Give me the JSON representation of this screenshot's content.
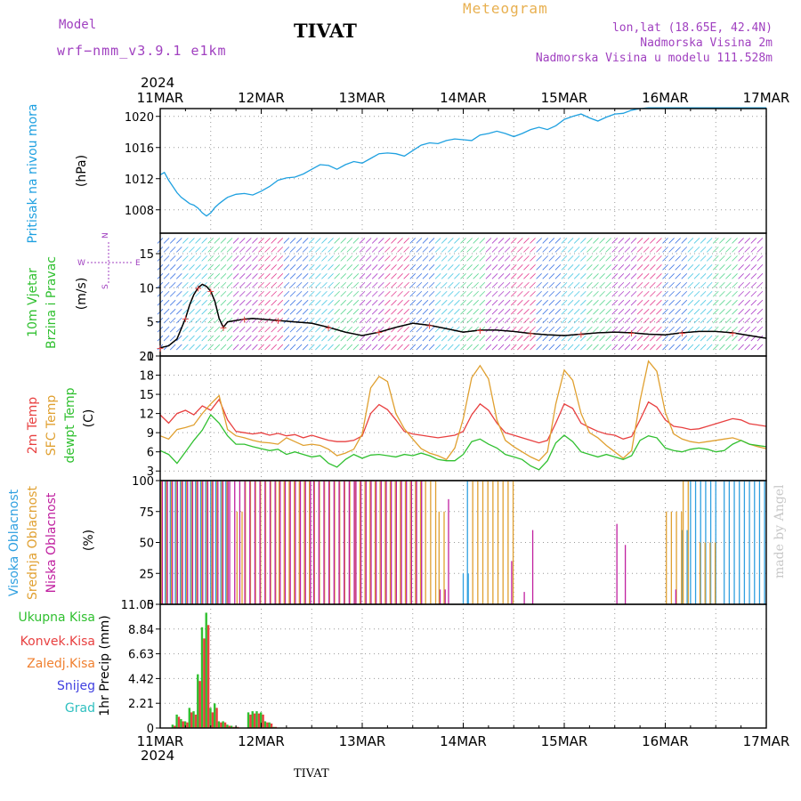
{
  "header": {
    "model_label": "Model",
    "model_name": "wrf−nmm_v3.9.1 e1km",
    "station": "TIVAT",
    "meteogram": "Meteogram",
    "lonlat": "lon,lat (18.65E, 42.4N)",
    "elevation": "Nadmorska Visina 2m",
    "model_elevation": "Nadmorska Visina u modelu 111.528m",
    "year_top": "2024",
    "year_bottom": "2024",
    "footer_station": "TIVAT",
    "made_by": "made by Angel"
  },
  "colors": {
    "pressure": "#1ea0e0",
    "temp2m": "#e84040",
    "sfctemp": "#e0a030",
    "dewpt": "#30c030",
    "high_cloud": "#30a0e0",
    "mid_cloud": "#e0a030",
    "low_cloud": "#c020a0",
    "total_rain": "#30c030",
    "conv_rain": "#e84040",
    "frozen": "#f08030",
    "snow": "#4040e0",
    "hail": "#30c0c0",
    "wind_speed_line": "#000000",
    "wind_dir_marks": "#e84040"
  },
  "chart_data": [
    {
      "type": "line",
      "id": "pressure",
      "ylabel": [
        "Pritisak na nivou mora",
        "(hPa)"
      ],
      "x_ticks": [
        "11MAR",
        "12MAR",
        "13MAR",
        "14MAR",
        "15MAR",
        "16MAR",
        "17MAR"
      ],
      "x_unit": "hours since 11MAR 00UTC",
      "xlim": [
        0,
        144
      ],
      "ylim": [
        1005,
        1021
      ],
      "yticks": [
        1008,
        1012,
        1016,
        1020
      ],
      "grid": true,
      "series": [
        {
          "name": "",
          "x": [
            0,
            1,
            2,
            3,
            4,
            5,
            6,
            7,
            8,
            9,
            10,
            11,
            12,
            13,
            14,
            15,
            16,
            18,
            20,
            22,
            24,
            26,
            28,
            30,
            32,
            34,
            36,
            38,
            40,
            42,
            44,
            46,
            48,
            50,
            52,
            54,
            56,
            58,
            60,
            62,
            64,
            66,
            68,
            70,
            72,
            74,
            76,
            78,
            80,
            82,
            84,
            86,
            88,
            90,
            92,
            94,
            96,
            98,
            100,
            102,
            104,
            106,
            108,
            110,
            112,
            114,
            116,
            118,
            120,
            122,
            124,
            126,
            128,
            130,
            132,
            134,
            136,
            138,
            140,
            142,
            144
          ],
          "y": [
            1012.5,
            1012.8,
            1011.8,
            1011.0,
            1010.2,
            1009.6,
            1009.2,
            1008.8,
            1008.6,
            1008.2,
            1007.6,
            1007.2,
            1007.6,
            1008.3,
            1008.8,
            1009.2,
            1009.6,
            1010.0,
            1010.1,
            1009.9,
            1010.4,
            1011.0,
            1011.8,
            1012.1,
            1012.2,
            1012.6,
            1013.2,
            1013.8,
            1013.7,
            1013.2,
            1013.8,
            1014.2,
            1014.0,
            1014.6,
            1015.2,
            1015.3,
            1015.2,
            1014.9,
            1015.6,
            1016.3,
            1016.6,
            1016.5,
            1016.9,
            1017.1,
            1017.0,
            1016.9,
            1017.6,
            1017.8,
            1018.1,
            1017.8,
            1017.4,
            1017.8,
            1018.3,
            1018.6,
            1018.3,
            1018.8,
            1019.6,
            1020.0,
            1020.3,
            1019.8,
            1019.4,
            1019.9,
            1020.3,
            1020.4,
            1020.8,
            1021.0,
            1021.1,
            1021.1,
            1021.1,
            1021.1,
            1021.1,
            1021.1,
            1021.1,
            1021.1,
            1021.1,
            1021.1,
            1021.1,
            1021.1,
            1021.1,
            1021.1,
            1021.1
          ]
        }
      ]
    },
    {
      "type": "line",
      "id": "wind",
      "ylabel": [
        "10m Vjetar",
        "Brzina i Pravac",
        "(m/s)"
      ],
      "compass": {
        "n": "N",
        "s": "S",
        "w": "W",
        "e": "E"
      },
      "xlim": [
        0,
        144
      ],
      "ylim": [
        0,
        18
      ],
      "yticks": [
        0,
        5,
        10,
        15
      ],
      "grid": true,
      "series": [
        {
          "name": "",
          "x": [
            0,
            2,
            4,
            6,
            7,
            8,
            9,
            10,
            11,
            12,
            13,
            14,
            15,
            16,
            18,
            20,
            22,
            24,
            28,
            32,
            36,
            40,
            44,
            48,
            52,
            56,
            60,
            64,
            68,
            72,
            76,
            80,
            84,
            88,
            92,
            96,
            100,
            104,
            108,
            112,
            116,
            120,
            124,
            128,
            132,
            136,
            140,
            144
          ],
          "y": [
            1.2,
            1.5,
            2.5,
            5.5,
            7.5,
            9.0,
            10.0,
            10.5,
            10.2,
            9.5,
            8.0,
            5.5,
            4.2,
            5.0,
            5.2,
            5.4,
            5.5,
            5.4,
            5.2,
            5.0,
            4.8,
            4.2,
            3.5,
            3.0,
            3.5,
            4.2,
            4.8,
            4.5,
            4.0,
            3.5,
            3.8,
            3.8,
            3.6,
            3.3,
            3.1,
            3.0,
            3.2,
            3.4,
            3.5,
            3.4,
            3.2,
            3.1,
            3.4,
            3.6,
            3.6,
            3.4,
            3.0,
            2.6
          ]
        }
      ]
    },
    {
      "type": "line",
      "id": "temperature",
      "ylabel": [
        "2m Temp",
        "SFC Temp",
        "dewpt Temp",
        "(C)"
      ],
      "xlim": [
        0,
        144
      ],
      "ylim": [
        1.5,
        21
      ],
      "yticks": [
        3,
        6,
        9,
        12,
        15,
        18,
        21
      ],
      "grid": true,
      "series": [
        {
          "name": "2m Temp",
          "x": [
            0,
            2,
            4,
            6,
            8,
            10,
            12,
            14,
            16,
            18,
            20,
            22,
            24,
            26,
            28,
            30,
            32,
            34,
            36,
            38,
            40,
            42,
            44,
            46,
            48,
            50,
            52,
            54,
            56,
            58,
            60,
            62,
            64,
            66,
            68,
            70,
            72,
            74,
            76,
            78,
            80,
            82,
            84,
            86,
            88,
            90,
            92,
            94,
            96,
            98,
            100,
            102,
            104,
            106,
            108,
            110,
            112,
            114,
            116,
            118,
            120,
            122,
            124,
            126,
            128,
            130,
            132,
            134,
            136,
            138,
            140,
            142,
            144
          ],
          "y": [
            11.8,
            10.5,
            12.0,
            12.5,
            11.8,
            13.2,
            12.5,
            14.2,
            11.0,
            9.2,
            9.0,
            8.8,
            9.0,
            8.6,
            8.9,
            8.5,
            8.7,
            8.2,
            8.6,
            8.2,
            7.8,
            7.6,
            7.6,
            7.8,
            8.5,
            12.0,
            13.4,
            12.6,
            11.0,
            9.2,
            8.8,
            8.6,
            8.4,
            8.2,
            8.4,
            8.6,
            9.2,
            11.8,
            13.5,
            12.5,
            10.5,
            9.0,
            8.6,
            8.2,
            7.8,
            7.4,
            7.8,
            10.5,
            13.5,
            12.8,
            10.5,
            9.8,
            9.2,
            8.8,
            8.6,
            8.0,
            8.4,
            11.0,
            13.8,
            13.0,
            11.0,
            10.0,
            9.8,
            9.5,
            9.6,
            10.0,
            10.4,
            10.8,
            11.2,
            11.0,
            10.4,
            10.2,
            10.0
          ]
        },
        {
          "name": "SFC Temp",
          "x": [
            0,
            2,
            4,
            6,
            8,
            10,
            12,
            14,
            16,
            18,
            20,
            22,
            24,
            26,
            28,
            30,
            32,
            34,
            36,
            38,
            40,
            42,
            44,
            46,
            48,
            50,
            52,
            54,
            56,
            58,
            60,
            62,
            64,
            66,
            68,
            70,
            72,
            74,
            76,
            78,
            80,
            82,
            84,
            86,
            88,
            90,
            92,
            94,
            96,
            98,
            100,
            102,
            104,
            106,
            108,
            110,
            112,
            114,
            116,
            118,
            120,
            122,
            124,
            126,
            128,
            130,
            132,
            134,
            136,
            138,
            140,
            142,
            144
          ],
          "y": [
            8.5,
            8.0,
            9.5,
            9.8,
            10.2,
            12.0,
            13.5,
            14.8,
            9.5,
            8.5,
            8.2,
            7.8,
            7.5,
            7.4,
            7.2,
            8.2,
            7.6,
            7.0,
            7.2,
            7.0,
            6.4,
            5.4,
            5.8,
            6.4,
            8.8,
            16.0,
            17.8,
            17.0,
            12.0,
            9.6,
            8.0,
            6.5,
            5.8,
            5.4,
            4.8,
            6.6,
            11.2,
            17.6,
            19.5,
            17.4,
            11.0,
            7.8,
            6.8,
            6.0,
            5.2,
            4.6,
            6.0,
            13.5,
            18.8,
            17.2,
            12.0,
            9.0,
            8.2,
            7.0,
            6.0,
            5.0,
            6.2,
            14.0,
            20.2,
            18.6,
            12.2,
            8.8,
            8.0,
            7.6,
            7.4,
            7.6,
            7.8,
            8.0,
            8.2,
            7.8,
            7.2,
            6.8,
            6.5
          ]
        },
        {
          "name": "dewpt Temp",
          "x": [
            0,
            2,
            4,
            6,
            8,
            10,
            12,
            14,
            16,
            18,
            20,
            22,
            24,
            26,
            28,
            30,
            32,
            34,
            36,
            38,
            40,
            42,
            44,
            46,
            48,
            50,
            52,
            54,
            56,
            58,
            60,
            62,
            64,
            66,
            68,
            70,
            72,
            74,
            76,
            78,
            80,
            82,
            84,
            86,
            88,
            90,
            92,
            94,
            96,
            98,
            100,
            102,
            104,
            106,
            108,
            110,
            112,
            114,
            116,
            118,
            120,
            122,
            124,
            126,
            128,
            130,
            132,
            134,
            136,
            138,
            140,
            142,
            144
          ],
          "y": [
            6.2,
            5.6,
            4.2,
            6.0,
            7.8,
            9.4,
            11.8,
            10.5,
            8.5,
            7.2,
            7.2,
            6.8,
            6.5,
            6.2,
            6.4,
            5.6,
            6.0,
            5.6,
            5.2,
            5.4,
            4.2,
            3.6,
            4.8,
            5.6,
            5.0,
            5.5,
            5.6,
            5.4,
            5.2,
            5.6,
            5.4,
            5.8,
            5.4,
            4.8,
            4.6,
            4.6,
            5.6,
            7.6,
            8.0,
            7.2,
            6.6,
            5.6,
            5.2,
            4.8,
            3.8,
            3.2,
            4.6,
            7.4,
            8.6,
            7.6,
            6.0,
            5.6,
            5.2,
            5.6,
            5.2,
            4.8,
            5.4,
            7.8,
            8.5,
            8.2,
            6.6,
            6.2,
            6.0,
            6.4,
            6.6,
            6.4,
            6.0,
            6.2,
            7.2,
            7.8,
            7.2,
            7.0,
            6.8
          ]
        }
      ]
    },
    {
      "type": "bar",
      "id": "cloud",
      "ylabel": [
        "Visoka Oblacnost",
        "Srednja Oblacnost",
        "Niska Oblacnost",
        "(%)"
      ],
      "xlim": [
        0,
        144
      ],
      "ylim": [
        0,
        100
      ],
      "yticks": [
        0,
        25,
        50,
        75,
        100
      ],
      "grid": true,
      "series": [
        {
          "name": "Visoka Oblacnost",
          "ranges": [
            [
              0,
              16,
              100
            ],
            [
              72,
              74,
              25
            ],
            [
              73,
              74,
              100
            ],
            [
              124,
              126,
              60
            ],
            [
              126,
              132,
              100
            ],
            [
              134,
              144,
              100
            ]
          ]
        },
        {
          "name": "Srednja Oblacnost",
          "ranges": [
            [
              0,
              16,
              100
            ],
            [
              18,
              20,
              75
            ],
            [
              20,
              28,
              100
            ],
            [
              28,
              40,
              100
            ],
            [
              40,
              66,
              100
            ],
            [
              66,
              68,
              75
            ],
            [
              74,
              84,
              100
            ],
            [
              120,
              124,
              75
            ],
            [
              124,
              126,
              100
            ],
            [
              128,
              132,
              50
            ]
          ]
        },
        {
          "name": "Niska Oblacnost",
          "ranges": [
            [
              0,
              16,
              100
            ],
            [
              16,
              36,
              100
            ],
            [
              36,
              46,
              100
            ],
            [
              46,
              62,
              100
            ],
            [
              66,
              68,
              12
            ],
            [
              68,
              69,
              85
            ],
            [
              83,
              84,
              35
            ],
            [
              86,
              87,
              10
            ],
            [
              88,
              89,
              60
            ],
            [
              108,
              109,
              65
            ],
            [
              110,
              111,
              48
            ],
            [
              122,
              123,
              12
            ]
          ]
        }
      ]
    },
    {
      "type": "bar",
      "id": "precip",
      "ylabel": [
        "Ukupna Kisa",
        "Konvek.Kisa",
        "Zaledj.Kisa",
        "Snijeg",
        "Grad",
        "1hr Precip (mm)"
      ],
      "xlim": [
        0,
        144
      ],
      "ylim": [
        0,
        11.05
      ],
      "yticks": [
        0,
        2.21,
        4.42,
        6.63,
        8.84,
        11.05
      ],
      "grid": true,
      "x": [
        3,
        4,
        5,
        6,
        7,
        8,
        9,
        10,
        11,
        12,
        13,
        14,
        15,
        16,
        17,
        18,
        21,
        22,
        23,
        24,
        25,
        26,
        27
      ],
      "series": [
        {
          "name": "Ukupna Kisa",
          "values": [
            0.3,
            1.2,
            0.8,
            0.6,
            1.8,
            1.5,
            4.8,
            9.0,
            10.3,
            1.8,
            2.2,
            0.6,
            0.6,
            0.3,
            0.2,
            0.1,
            1.4,
            1.5,
            1.5,
            1.4,
            0.6,
            0.5,
            0.1
          ]
        },
        {
          "name": "Konvek.Kisa",
          "values": [
            0.2,
            1.0,
            0.6,
            0.5,
            1.4,
            1.2,
            4.2,
            8.0,
            9.2,
            1.4,
            1.8,
            0.5,
            0.5,
            0.2,
            0.1,
            0.1,
            1.2,
            1.3,
            1.3,
            1.2,
            0.5,
            0.4,
            0.1
          ]
        }
      ]
    }
  ]
}
